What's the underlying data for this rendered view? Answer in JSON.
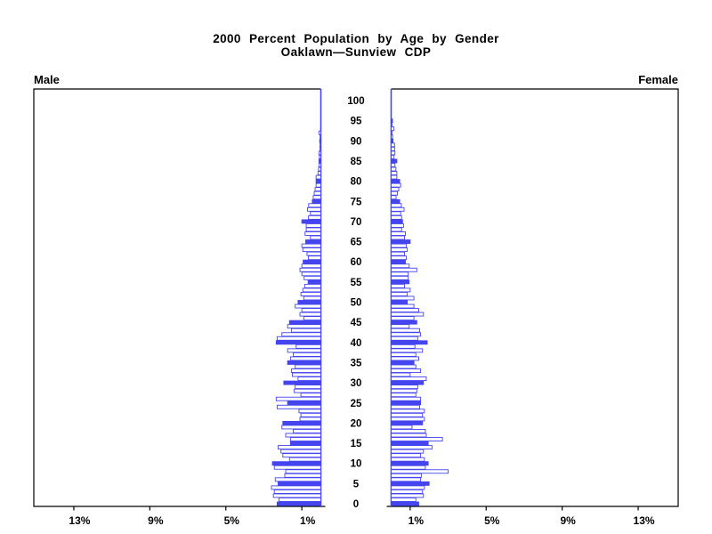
{
  "title": {
    "line1": "2000 Percent Population by Age by Gender",
    "line2": "Oaklawn—Sunview CDP"
  },
  "panels": {
    "male_label": "Male",
    "female_label": "Female"
  },
  "chart_data": {
    "type": "bar",
    "subtype": "population-pyramid",
    "title": "2000 Percent Population by Age by Gender",
    "subtitle": "Oaklawn—Sunview CDP",
    "legend_position": "none",
    "grid": false,
    "age_axis": {
      "min": 0,
      "max": 100,
      "tick_step": 5,
      "tick_labels": [
        "0",
        "5",
        "10",
        "15",
        "20",
        "25",
        "30",
        "35",
        "40",
        "45",
        "50",
        "55",
        "60",
        "65",
        "70",
        "75",
        "80",
        "85",
        "90",
        "95",
        "100"
      ]
    },
    "pct_axis": {
      "unit": "percent population",
      "tick_values": [
        1,
        5,
        9,
        13
      ],
      "tick_labels": [
        "1%",
        "5%",
        "9%",
        "13%"
      ],
      "left_display_order": [
        "13%",
        "9%",
        "5%",
        "1%"
      ],
      "right_display_order": [
        "1%",
        "5%",
        "9%",
        "13%"
      ],
      "max": 15.1
    },
    "highlight_rule": "bars at ages divisible by 5 are filled blue; other ages are white with blue outline",
    "colors": {
      "bar_fill_blue": "#4545ef",
      "bar_fill_white": "#ffffff",
      "bar_outline": "#4545ef",
      "inner_axis_blue": "#4545ef",
      "frame_black": "#000000"
    },
    "series": [
      {
        "name": "Male",
        "side": "left",
        "unit": "%",
        "values": [
          2.3,
          2.2,
          2.5,
          2.45,
          2.6,
          2.25,
          2.4,
          1.9,
          1.85,
          2.45,
          2.55,
          1.65,
          2.0,
          2.1,
          2.25,
          1.6,
          1.6,
          1.85,
          1.45,
          2.05,
          2.0,
          1.1,
          1.05,
          1.15,
          2.3,
          1.75,
          2.35,
          1.05,
          1.4,
          1.35,
          1.95,
          1.2,
          1.5,
          1.55,
          1.35,
          1.75,
          1.6,
          1.45,
          1.75,
          1.3,
          2.35,
          2.3,
          2.05,
          1.55,
          1.75,
          1.65,
          0.9,
          1.1,
          1.0,
          1.35,
          1.2,
          0.9,
          1.05,
          0.95,
          0.85,
          0.67,
          0.88,
          1.0,
          1.1,
          1.0,
          0.93,
          0.66,
          0.73,
          0.95,
          1.0,
          0.8,
          0.55,
          0.83,
          0.77,
          0.77,
          1.0,
          0.65,
          0.55,
          0.7,
          0.64,
          0.45,
          0.4,
          0.35,
          0.3,
          0.25,
          0.25,
          0.25,
          0.15,
          0.12,
          0.1,
          0.1,
          0.08,
          0.1,
          0.05,
          0.05,
          0.06,
          0.04,
          0.1,
          0,
          0,
          0,
          0,
          0,
          0,
          0,
          0
        ]
      },
      {
        "name": "Female",
        "side": "right",
        "unit": "%",
        "values": [
          1.45,
          1.3,
          1.7,
          1.65,
          1.75,
          2.0,
          1.55,
          1.6,
          3.0,
          1.8,
          1.95,
          1.75,
          1.55,
          1.7,
          2.15,
          1.95,
          2.7,
          1.85,
          1.8,
          1.1,
          1.65,
          1.75,
          1.65,
          1.75,
          1.5,
          1.55,
          1.55,
          1.3,
          1.35,
          1.4,
          1.7,
          1.85,
          1.0,
          1.55,
          1.3,
          1.2,
          1.45,
          1.3,
          1.65,
          1.25,
          1.9,
          1.4,
          1.55,
          1.5,
          0.95,
          1.35,
          1.2,
          1.7,
          1.45,
          1.2,
          0.85,
          1.2,
          0.85,
          1.0,
          0.7,
          0.95,
          0.9,
          0.9,
          1.35,
          0.95,
          0.75,
          0.8,
          0.7,
          0.85,
          0.8,
          1.0,
          0.7,
          0.75,
          0.55,
          0.65,
          0.6,
          0.55,
          0.5,
          0.68,
          0.54,
          0.45,
          0.26,
          0.33,
          0.4,
          0.5,
          0.45,
          0.3,
          0.3,
          0.25,
          0.2,
          0.3,
          0.15,
          0.2,
          0.18,
          0.18,
          0.1,
          0.08,
          0.05,
          0.15,
          0.05,
          0.07,
          0,
          0,
          0,
          0,
          0
        ]
      }
    ]
  }
}
